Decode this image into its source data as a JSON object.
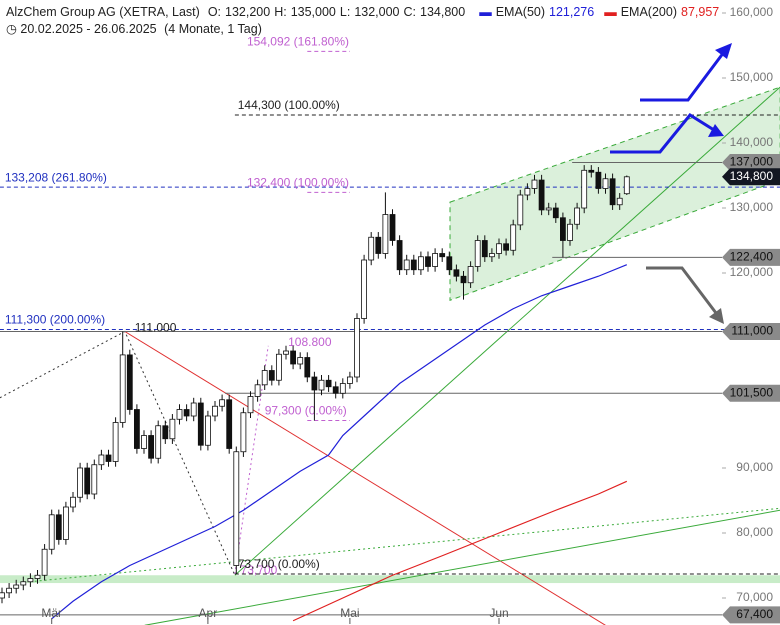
{
  "chart_data": {
    "type": "candlestick",
    "header": {
      "title": "AlzChem Group AG (XETRA, Last)",
      "fields": [
        {
          "key": "O:",
          "value": 132200,
          "label": "132,200"
        },
        {
          "key": "H:",
          "value": 135000,
          "label": "135,000"
        },
        {
          "key": "L:",
          "value": 132000,
          "label": "132,000"
        },
        {
          "key": "C:",
          "value": 134800,
          "label": "134,800"
        }
      ],
      "period": "20.02.2025 - 26.06.2025",
      "span": "(4 Monate, 1 Tag)"
    },
    "categories": [
      null,
      null,
      null,
      null,
      null,
      null,
      null,
      "Mär",
      null,
      null,
      null,
      null,
      null,
      null,
      null,
      null,
      null,
      null,
      null,
      null,
      null,
      null,
      null,
      null,
      null,
      null,
      null,
      null,
      null,
      "Apr",
      null,
      null,
      null,
      null,
      null,
      null,
      null,
      null,
      null,
      null,
      null,
      null,
      null,
      null,
      null,
      null,
      null,
      null,
      null,
      "Mai",
      null,
      null,
      null,
      null,
      null,
      null,
      null,
      null,
      null,
      null,
      null,
      null,
      null,
      null,
      null,
      null,
      null,
      null,
      null,
      null,
      "Jun",
      null,
      null,
      null,
      null,
      null,
      null,
      null,
      null,
      null,
      null,
      null,
      null,
      null,
      null,
      null,
      null,
      null,
      null
    ],
    "ohlc": [
      [
        70000,
        71600,
        69200,
        70800
      ],
      [
        70800,
        72300,
        70000,
        71500
      ],
      [
        71500,
        72800,
        70700,
        72000
      ],
      [
        72000,
        73300,
        71200,
        72500
      ],
      [
        72500,
        73800,
        71700,
        73000
      ],
      [
        73000,
        74300,
        72200,
        73500
      ],
      [
        73500,
        78300,
        72700,
        77500
      ],
      [
        77500,
        83600,
        76700,
        82800
      ],
      [
        82800,
        83600,
        78200,
        79000
      ],
      [
        79000,
        84800,
        78200,
        84000
      ],
      [
        84000,
        86300,
        83200,
        85500
      ],
      [
        85500,
        90800,
        84700,
        90000
      ],
      [
        90000,
        90800,
        85200,
        86000
      ],
      [
        86000,
        91300,
        85200,
        90500
      ],
      [
        90500,
        92800,
        89700,
        92000
      ],
      [
        92000,
        92800,
        90200,
        91000
      ],
      [
        91000,
        97800,
        90200,
        97000
      ],
      [
        97000,
        111000,
        96200,
        107400
      ],
      [
        107400,
        108200,
        98200,
        99000
      ],
      [
        99000,
        99800,
        92200,
        93000
      ],
      [
        93000,
        95800,
        92200,
        95000
      ],
      [
        95000,
        95800,
        90700,
        91500
      ],
      [
        91500,
        97300,
        90700,
        96500
      ],
      [
        96500,
        97300,
        93700,
        94500
      ],
      [
        94500,
        98300,
        93700,
        97500
      ],
      [
        97500,
        99800,
        96700,
        99000
      ],
      [
        99000,
        99800,
        97200,
        98000
      ],
      [
        98000,
        100800,
        97200,
        100000
      ],
      [
        100000,
        100800,
        92700,
        93500
      ],
      [
        93500,
        98800,
        92700,
        98000
      ],
      [
        98000,
        100300,
        97200,
        99500
      ],
      [
        99500,
        101300,
        98700,
        100500
      ],
      [
        100500,
        101300,
        92200,
        93000
      ],
      [
        75000,
        93300,
        73700,
        92500
      ],
      [
        92500,
        99300,
        91700,
        98500
      ],
      [
        98500,
        101800,
        97700,
        101000
      ],
      [
        101000,
        103600,
        100200,
        102800
      ],
      [
        102800,
        105800,
        102000,
        105000
      ],
      [
        105000,
        105800,
        102700,
        103500
      ],
      [
        103500,
        108300,
        102700,
        107500
      ],
      [
        107500,
        108800,
        106700,
        108000
      ],
      [
        108000,
        108800,
        105200,
        106000
      ],
      [
        106000,
        107800,
        105200,
        107000
      ],
      [
        107000,
        107800,
        103200,
        104000
      ],
      [
        104000,
        104800,
        97300,
        102000
      ],
      [
        102000,
        104300,
        101200,
        103500
      ],
      [
        103500,
        104300,
        101700,
        102500
      ],
      [
        102500,
        103300,
        100700,
        101500
      ],
      [
        101500,
        103800,
        100700,
        103000
      ],
      [
        103000,
        104800,
        102200,
        104000
      ],
      [
        104000,
        113800,
        103200,
        113000
      ],
      [
        113000,
        122800,
        112200,
        122000
      ],
      [
        122000,
        126300,
        121200,
        125500
      ],
      [
        125500,
        126300,
        122200,
        123000
      ],
      [
        123000,
        132400,
        122200,
        129000
      ],
      [
        129000,
        129800,
        124200,
        125000
      ],
      [
        125000,
        125800,
        119700,
        120500
      ],
      [
        120500,
        122800,
        119700,
        122000
      ],
      [
        122000,
        122800,
        119700,
        120500
      ],
      [
        120500,
        123300,
        119700,
        122500
      ],
      [
        122500,
        123300,
        120200,
        121000
      ],
      [
        121000,
        123800,
        120200,
        123000
      ],
      [
        123000,
        123800,
        121700,
        122500
      ],
      [
        122500,
        123300,
        119700,
        120500
      ],
      [
        120500,
        121300,
        118700,
        119500
      ],
      [
        119500,
        120300,
        115900,
        118500
      ],
      [
        118500,
        121800,
        117700,
        121000
      ],
      [
        121000,
        125800,
        120200,
        125000
      ],
      [
        125000,
        125800,
        121700,
        122500
      ],
      [
        122500,
        123800,
        121700,
        123000
      ],
      [
        123000,
        125300,
        122200,
        124500
      ],
      [
        124500,
        125300,
        122700,
        123500
      ],
      [
        123500,
        128200,
        122700,
        127400
      ],
      [
        127400,
        132800,
        126600,
        132000
      ],
      [
        132000,
        133800,
        131200,
        133000
      ],
      [
        133000,
        135100,
        132200,
        134300
      ],
      [
        134300,
        135100,
        128900,
        129700
      ],
      [
        129700,
        130800,
        128900,
        130000
      ],
      [
        130000,
        130800,
        127700,
        128500
      ],
      [
        128500,
        129300,
        122400,
        125000
      ],
      [
        125000,
        128300,
        124200,
        127500
      ],
      [
        127500,
        130800,
        126700,
        130000
      ],
      [
        130000,
        136600,
        129200,
        135800
      ],
      [
        135800,
        136600,
        134700,
        135500
      ],
      [
        135500,
        136300,
        132200,
        133000
      ],
      [
        133000,
        135300,
        132200,
        134500
      ],
      [
        134500,
        135300,
        129700,
        130500
      ],
      [
        130500,
        132300,
        129700,
        131500
      ],
      [
        132200,
        135000,
        132000,
        134800
      ]
    ],
    "series": [
      {
        "name": "EMA(50)",
        "color": "#2020d8",
        "last_label": "121,276",
        "last": 121276,
        "x": [
          7,
          10,
          14,
          18,
          22,
          26,
          30,
          34,
          38,
          42,
          46,
          48,
          52,
          56,
          60,
          64,
          68,
          72,
          76,
          80,
          84,
          88
        ],
        "values": [
          66800,
          69500,
          72500,
          75000,
          77000,
          79000,
          81000,
          83500,
          86500,
          89500,
          92000,
          95000,
          99000,
          103000,
          106000,
          109000,
          112000,
          114500,
          116500,
          118000,
          119500,
          121276
        ]
      },
      {
        "name": "EMA(200)",
        "color": "#e02020",
        "last_label": "87,957",
        "last": 87957,
        "x": [
          41,
          48,
          55,
          62,
          70,
          78,
          84,
          88
        ],
        "values": [
          66500,
          70000,
          73500,
          76500,
          80000,
          83500,
          86000,
          87957
        ]
      }
    ],
    "ylim": [
      66000,
      162000
    ],
    "yticks": [
      {
        "value": 70000,
        "label": "70,000"
      },
      {
        "value": 80000,
        "label": "80,000"
      },
      {
        "value": 90000,
        "label": "90,000"
      },
      {
        "value": 120000,
        "label": "120,000"
      },
      {
        "value": 130000,
        "label": "130,000"
      },
      {
        "value": 140000,
        "label": "140,000"
      },
      {
        "value": 150000,
        "label": "150,000"
      },
      {
        "value": 160000,
        "label": "160,000"
      }
    ],
    "band": {
      "values": [
        72300,
        73500
      ],
      "color": "#c8ecc8"
    },
    "channel": {
      "x": [
        63.1,
        109.6
      ],
      "upper": [
        130900,
        148600
      ],
      "lower": [
        115800,
        134300
      ],
      "color": "#3aaa3a"
    },
    "trendlines": [
      {
        "x": [
          17.3,
          85
        ],
        "values": [
          111000,
          65800
        ],
        "color": "#e03030",
        "dash": false
      },
      {
        "x": [
          32.8,
          109.6
        ],
        "values": [
          73500,
          148600
        ],
        "color": "#3aaa3a",
        "dash": false
      },
      {
        "x": [
          20.1,
          109.6
        ],
        "values": [
          65800,
          83500
        ],
        "color": "#3aaa3a",
        "dash": false
      },
      {
        "x": [
          3.9,
          109.6
        ],
        "values": [
          72500,
          83800
        ],
        "color": "#3aaa3a",
        "dash": true
      },
      {
        "x": [
          -0.3,
          17.3,
          32.8
        ],
        "values": [
          100800,
          111000,
          73500
        ],
        "color": "#333333",
        "dash": true
      },
      {
        "x": [
          32.8,
          37.5
        ],
        "values": [
          73700,
          108800
        ],
        "color": "#c060d0",
        "dash": true
      }
    ],
    "price_levels": [
      {
        "value": 137000,
        "label": "137,000",
        "from": 80.3,
        "box": "gray"
      },
      {
        "value": 134800,
        "label": "134,800",
        "box": "dark"
      },
      {
        "value": 122400,
        "label": "122,400",
        "from": 77.5,
        "box": "gray"
      },
      {
        "value": 111000,
        "label": "111,000",
        "from": -0.3,
        "box": "gray"
      },
      {
        "value": 101500,
        "label": "101,500",
        "from": 31.4,
        "box": "gray"
      },
      {
        "value": 67400,
        "label": "67,400",
        "from": -0.3,
        "box": "gray"
      }
    ],
    "fib_labels": [
      {
        "label": "154,092 (161.80%)",
        "value": 154092,
        "x": 34.5,
        "color": "#c060d0",
        "pos": "above",
        "line": [
          43,
          49
        ]
      },
      {
        "label": "144,300 (100.00%)",
        "value": 144300,
        "x": 33.2,
        "color": "#222222",
        "pos": "above",
        "line": [
          32.8,
          109.6
        ]
      },
      {
        "label": "133,208 (261.80%)",
        "value": 133208,
        "x": 0.4,
        "color": "#2030c0",
        "pos": "above",
        "line": [
          -0.3,
          109.6
        ]
      },
      {
        "label": "132,400 (100.00%)",
        "value": 132400,
        "x": 34.5,
        "color": "#c060d0",
        "pos": "above",
        "line": [
          43,
          49
        ]
      },
      {
        "label": "111,300 (200.00%)",
        "value": 111300,
        "x": 0.4,
        "color": "#2030c0",
        "pos": "above",
        "line": [
          -0.3,
          109.6
        ]
      },
      {
        "label": "111.000",
        "value": 111000,
        "x": 18.7,
        "color": "#222222",
        "pos": "at"
      },
      {
        "label": "108.800",
        "value": 108800,
        "x": 40.3,
        "color": "#c060d0",
        "pos": "at"
      },
      {
        "label": "97,300 (0.00%)",
        "value": 97300,
        "x": 37,
        "color": "#c060d0",
        "pos": "above",
        "line": [
          43,
          49
        ]
      },
      {
        "label": "73,700",
        "value": 73700,
        "x": 33.6,
        "color": "#c060d0",
        "pos": "at"
      },
      {
        "label": "73,700 (0.00%)",
        "value": 73700,
        "x": 33.2,
        "color": "#222222",
        "pos": "above",
        "line": [
          32.8,
          109.6
        ]
      }
    ]
  }
}
